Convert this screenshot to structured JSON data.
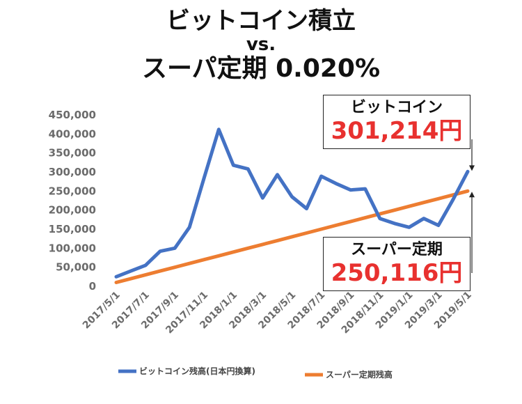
{
  "title": {
    "line1": "ビットコイン積立",
    "vs": "vs.",
    "line2": "スーパ定期 0.020%"
  },
  "callouts": {
    "bitcoin": {
      "label": "ビットコイン",
      "value": "301,214円"
    },
    "deposit": {
      "label": "スーパー定期",
      "value": "250,116円"
    }
  },
  "colors": {
    "bitcoin": "#4472c4",
    "deposit": "#ed7d31",
    "callout_value": "#e8312f",
    "axis_text": "#6b6b6b"
  },
  "chart_data": {
    "type": "line",
    "title": "ビットコイン積立 vs. スーパ定期 0.020%",
    "y_ticks": [
      "0",
      "50,000",
      "100,000",
      "150,000",
      "200,000",
      "250,000",
      "300,000",
      "350,000",
      "400,000",
      "450,000"
    ],
    "ylim": [
      0,
      450000
    ],
    "x_tick_labels": [
      "2017/5/1",
      "2017/7/1",
      "2017/9/1",
      "2017/11/1",
      "2018/1/1",
      "2018/3/1",
      "2018/5/1",
      "2018/7/1",
      "2018/9/1",
      "2018/11/1",
      "2019/1/1",
      "2019/3/1",
      "2019/5/1"
    ],
    "x_months": [
      "2017/5",
      "2017/6",
      "2017/7",
      "2017/8",
      "2017/9",
      "2017/10",
      "2017/11",
      "2017/12",
      "2018/1",
      "2018/2",
      "2018/3",
      "2018/4",
      "2018/5",
      "2018/6",
      "2018/7",
      "2018/8",
      "2018/9",
      "2018/10",
      "2018/11",
      "2018/12",
      "2019/1",
      "2019/2",
      "2019/3",
      "2019/4",
      "2019/5"
    ],
    "series": [
      {
        "name": "ビットコイン残高(日本円換算)",
        "values": [
          25000,
          40000,
          55000,
          92000,
          100000,
          155000,
          285000,
          412000,
          318000,
          308000,
          232000,
          293000,
          235000,
          204000,
          289000,
          270000,
          253000,
          256000,
          178000,
          165000,
          155000,
          178000,
          160000,
          228000,
          301214
        ]
      },
      {
        "name": "スーパー定期残高",
        "values": [
          10000,
          20000,
          30000,
          40000,
          50000,
          60000,
          70000,
          80000,
          90000,
          100000,
          110000,
          120000,
          130000,
          140000,
          150000,
          160000,
          170000,
          180000,
          190000,
          200000,
          210000,
          220000,
          230000,
          240000,
          250116
        ]
      }
    ],
    "legend_position": "bottom"
  }
}
